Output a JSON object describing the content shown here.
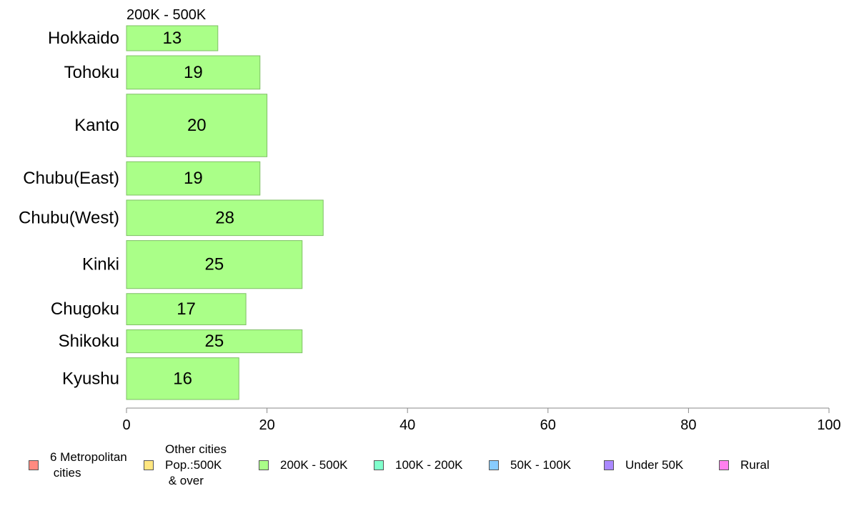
{
  "chart_data": {
    "type": "bar",
    "orientation": "horizontal",
    "title": "200K - 500K",
    "categories": [
      "Hokkaido",
      "Tohoku",
      "Kanto",
      "Chubu(East)",
      "Chubu(West)",
      "Kinki",
      "Chugoku",
      "Shikoku",
      "Kyushu"
    ],
    "values": [
      13,
      19,
      20,
      19,
      28,
      25,
      17,
      25,
      16
    ],
    "value_labels": [
      "13",
      "19",
      "20",
      "19",
      "28",
      "25",
      "17",
      "25",
      "16"
    ],
    "bar_thickness": [
      0.6,
      0.8,
      1.5,
      0.8,
      0.85,
      1.15,
      0.75,
      0.55,
      1.0
    ],
    "xlim": [
      0,
      100
    ],
    "x_ticks": [
      "0",
      "20",
      "40",
      "60",
      "80",
      "100"
    ],
    "x_tick_values": [
      0,
      20,
      40,
      60,
      80,
      100
    ],
    "xlabel": "",
    "ylabel": "",
    "grid": false,
    "bar_color": "#aaff88",
    "bar_border_color": "#7fbf66",
    "legend_position": "bottom",
    "legend": [
      {
        "label": "6 Metropolitan\n cities",
        "color": "#ff8a80"
      },
      {
        "label": "Other cities\nPop.:500K\n & over",
        "color": "#ffe680"
      },
      {
        "label": "200K - 500K",
        "color": "#aaff88"
      },
      {
        "label": "100K - 200K",
        "color": "#80ffcc"
      },
      {
        "label": "50K - 100K",
        "color": "#88ccff"
      },
      {
        "label": "Under 50K",
        "color": "#aa88ff"
      },
      {
        "label": "Rural",
        "color": "#ff80ee"
      }
    ]
  }
}
